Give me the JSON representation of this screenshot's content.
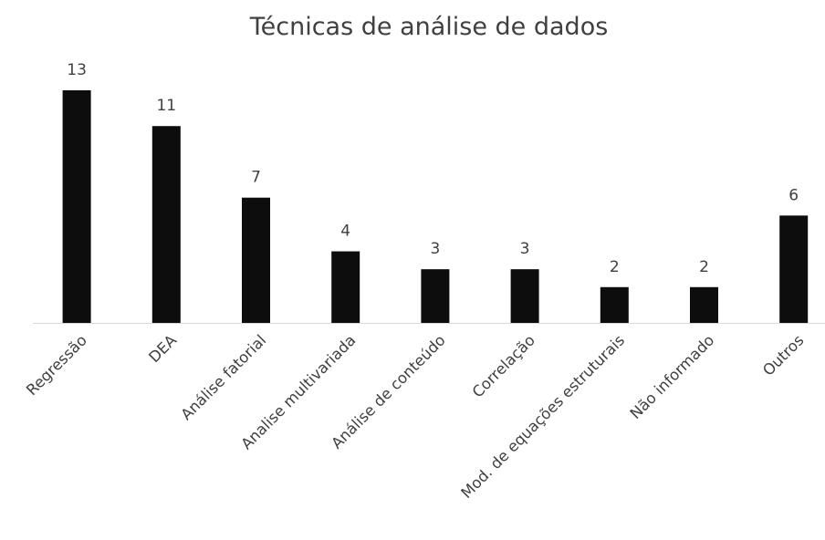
{
  "chart_data": {
    "type": "bar",
    "title": "Técnicas de análise de dados",
    "categories": [
      "Regressão",
      "DEA",
      "Análise fatorial",
      "Analise multivariada",
      "Análise de conteúdo",
      "Correlação",
      "Mod. de equações estruturais",
      "Não informado",
      "Outros"
    ],
    "values": [
      13,
      11,
      7,
      4,
      3,
      3,
      2,
      2,
      6
    ],
    "color": "#0d0d0d"
  }
}
